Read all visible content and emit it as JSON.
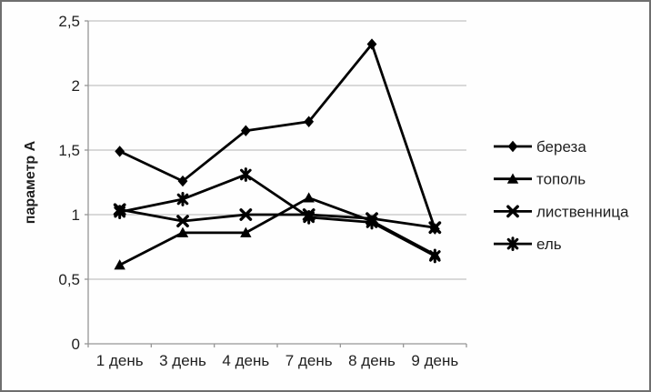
{
  "chart_data": {
    "type": "line",
    "title": "",
    "xlabel": "",
    "ylabel": "параметр А",
    "categories": [
      "1 день",
      "3 день",
      "4 день",
      "7 день",
      "8 день",
      "9 день"
    ],
    "series": [
      {
        "name": "береза",
        "marker": "diamond",
        "values": [
          1.49,
          1.26,
          1.65,
          1.72,
          2.32,
          0.89
        ]
      },
      {
        "name": "тополь",
        "marker": "triangle",
        "values": [
          0.61,
          0.86,
          0.86,
          1.13,
          0.95,
          0.69
        ]
      },
      {
        "name": "лиственница",
        "marker": "x",
        "values": [
          1.04,
          0.95,
          1.0,
          1.0,
          0.97,
          0.9
        ]
      },
      {
        "name": "ель",
        "marker": "asterisk",
        "values": [
          1.02,
          1.12,
          1.31,
          0.98,
          0.94,
          0.68
        ]
      }
    ],
    "ylim": [
      0,
      2.5
    ],
    "ytick_step": 0.5,
    "ytick_labels": [
      "0",
      "0,5",
      "1",
      "1,5",
      "2",
      "2,5"
    ],
    "grid": true,
    "legend_position": "right",
    "colors": {
      "series_line": "#000000",
      "grid_line": "#c3c3c3",
      "axis_line": "#969696",
      "text": "#1f1f1f",
      "background": "#fefefe",
      "frame_border": "#6f6f6f"
    }
  }
}
